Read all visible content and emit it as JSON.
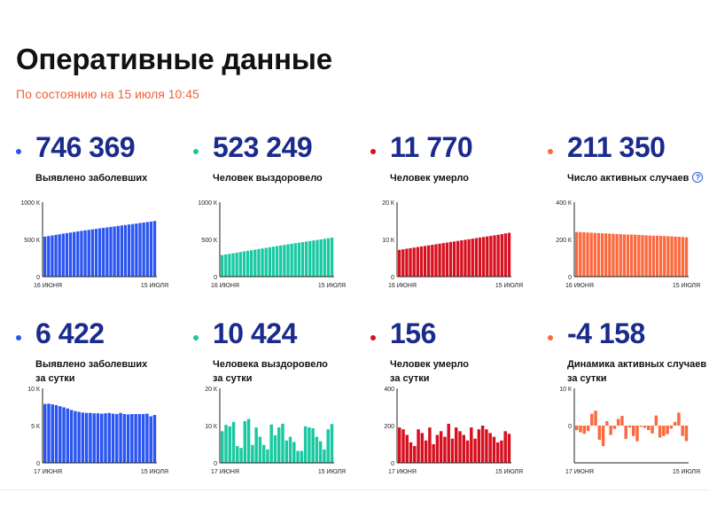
{
  "header": {
    "title": "Оперативные данные",
    "subtitle": "По состоянию на 15 июля 10:45"
  },
  "chart_data": [
    {
      "type": "bar",
      "color": "#2a55f0",
      "headline": "746 369",
      "label_lines": [
        "Выявлено заболевших"
      ],
      "has_help": false,
      "x_start_label": "16 ИЮНЯ",
      "x_end_label": "15 ИЮЛЯ",
      "y_ticks": [
        {
          "value": 0,
          "label": "0"
        },
        {
          "value": 500000,
          "label": "500 К"
        },
        {
          "value": 1000000,
          "label": "1000 К"
        }
      ],
      "ylim": [
        0,
        1000000
      ],
      "values": [
        537000,
        545000,
        553000,
        561000,
        569000,
        577000,
        585000,
        592000,
        600000,
        607000,
        614000,
        621000,
        628000,
        635000,
        642000,
        648000,
        655000,
        661000,
        668000,
        674000,
        681000,
        687000,
        693000,
        700000,
        706000,
        713000,
        720000,
        726000,
        733000,
        740000,
        746369
      ]
    },
    {
      "type": "bar",
      "color": "#19c9a2",
      "headline": "523 249",
      "label_lines": [
        "Человек выздоровело"
      ],
      "has_help": false,
      "x_start_label": "16 ИЮНЯ",
      "x_end_label": "15 ИЮЛЯ",
      "y_ticks": [
        {
          "value": 0,
          "label": "0"
        },
        {
          "value": 500000,
          "label": "500 К"
        },
        {
          "value": 1000000,
          "label": "1000 К"
        }
      ],
      "ylim": [
        0,
        1000000
      ],
      "values": [
        290000,
        298000,
        306000,
        314000,
        322000,
        331000,
        339000,
        347000,
        355000,
        363000,
        371000,
        379000,
        387000,
        395000,
        403000,
        411000,
        419000,
        426000,
        434000,
        441000,
        449000,
        456000,
        464000,
        471000,
        478000,
        486000,
        493000,
        500000,
        508000,
        515000,
        523249
      ]
    },
    {
      "type": "bar",
      "color": "#d6101f",
      "headline": "11 770",
      "label_lines": [
        "Человек умерло"
      ],
      "has_help": false,
      "x_start_label": "16 ИЮНЯ",
      "x_end_label": "15 ИЮЛЯ",
      "y_ticks": [
        {
          "value": 0,
          "label": "0"
        },
        {
          "value": 10000,
          "label": "10 К"
        },
        {
          "value": 20000,
          "label": "20 К"
        }
      ],
      "ylim": [
        0,
        20000
      ],
      "values": [
        7200,
        7350,
        7500,
        7650,
        7800,
        7950,
        8100,
        8250,
        8400,
        8550,
        8700,
        8850,
        9000,
        9150,
        9300,
        9450,
        9600,
        9750,
        9900,
        10050,
        10200,
        10350,
        10500,
        10650,
        10800,
        10950,
        11100,
        11250,
        11420,
        11600,
        11770
      ]
    },
    {
      "type": "bar",
      "color": "#fb6a3f",
      "headline": "211 350",
      "label_lines": [
        "Число активных случаев"
      ],
      "has_help": true,
      "x_start_label": "16 ИЮНЯ",
      "x_end_label": "15 ИЮЛЯ",
      "y_ticks": [
        {
          "value": 0,
          "label": "0"
        },
        {
          "value": 200000,
          "label": "200 К"
        },
        {
          "value": 400000,
          "label": "400 К"
        }
      ],
      "ylim": [
        0,
        400000
      ],
      "values": [
        240000,
        239000,
        238000,
        237000,
        236000,
        235000,
        234000,
        233000,
        232000,
        231000,
        230000,
        229000,
        228000,
        227000,
        226000,
        226000,
        225000,
        224000,
        223000,
        222000,
        221000,
        220000,
        220000,
        219000,
        218000,
        217000,
        216000,
        215000,
        214000,
        213000,
        211350
      ]
    },
    {
      "type": "bar",
      "color": "#2a55f0",
      "headline": "6 422",
      "label_lines": [
        "Выявлено заболевших",
        "за сутки"
      ],
      "has_help": false,
      "x_start_label": "17 ИЮНЯ",
      "x_end_label": "15 ИЮЛЯ",
      "y_ticks": [
        {
          "value": 0,
          "label": "0"
        },
        {
          "value": 5000,
          "label": "5 К"
        },
        {
          "value": 10000,
          "label": "10 К"
        }
      ],
      "ylim": [
        0,
        10000
      ],
      "values": [
        7900,
        7950,
        7850,
        7750,
        7600,
        7450,
        7300,
        7100,
        6950,
        6850,
        6750,
        6700,
        6700,
        6650,
        6650,
        6600,
        6650,
        6700,
        6600,
        6550,
        6700,
        6550,
        6500,
        6550,
        6550,
        6550,
        6550,
        6600,
        6250,
        6422
      ]
    },
    {
      "type": "bar",
      "color": "#19c9a2",
      "headline": "10 424",
      "label_lines": [
        "Человека выздоровело",
        "за сутки"
      ],
      "has_help": false,
      "x_start_label": "17 ИЮНЯ",
      "x_end_label": "15 ИЮЛЯ",
      "y_ticks": [
        {
          "value": 0,
          "label": "0"
        },
        {
          "value": 10000,
          "label": "10 К"
        },
        {
          "value": 20000,
          "label": "20 К"
        }
      ],
      "ylim": [
        0,
        20000
      ],
      "values": [
        8500,
        10200,
        9800,
        11000,
        4500,
        4000,
        11200,
        11800,
        4800,
        9500,
        7000,
        4800,
        3600,
        10300,
        7400,
        9500,
        10500,
        6000,
        7000,
        5600,
        3200,
        3200,
        9800,
        9500,
        9300,
        7000,
        5800,
        3600,
        9000,
        10424
      ]
    },
    {
      "type": "bar",
      "color": "#d6101f",
      "headline": "156",
      "label_lines": [
        "Человек умерло",
        "за сутки"
      ],
      "has_help": false,
      "x_start_label": "17 ИЮНЯ",
      "x_end_label": "15 ИЮЛЯ",
      "y_ticks": [
        {
          "value": 0,
          "label": "0"
        },
        {
          "value": 200,
          "label": "200"
        },
        {
          "value": 400,
          "label": "400"
        }
      ],
      "ylim": [
        0,
        400
      ],
      "values": [
        190,
        180,
        150,
        110,
        90,
        180,
        160,
        120,
        190,
        100,
        150,
        170,
        140,
        210,
        130,
        190,
        170,
        150,
        120,
        190,
        130,
        180,
        200,
        180,
        160,
        140,
        110,
        120,
        170,
        156
      ]
    },
    {
      "type": "bar",
      "color": "#fb6a3f",
      "headline": "-4 158",
      "label_lines": [
        "Динамика активных случаев",
        "за сутки"
      ],
      "has_help": false,
      "x_start_label": "17 ИЮНЯ",
      "x_end_label": "15 ИЮЛЯ",
      "y_ticks": [
        {
          "value": 0,
          "label": "0"
        },
        {
          "value": 10000,
          "label": "10 К"
        }
      ],
      "ylim": [
        -10000,
        10000
      ],
      "values": [
        -1200,
        -1800,
        -2200,
        -1500,
        3200,
        4000,
        -3800,
        -5500,
        1200,
        -2500,
        -900,
        1800,
        2600,
        -3600,
        -500,
        -2800,
        -4200,
        -300,
        -600,
        -1200,
        -2100,
        2700,
        -3200,
        -2800,
        -2300,
        -800,
        1000,
        3500,
        -2800,
        -4158
      ]
    }
  ]
}
